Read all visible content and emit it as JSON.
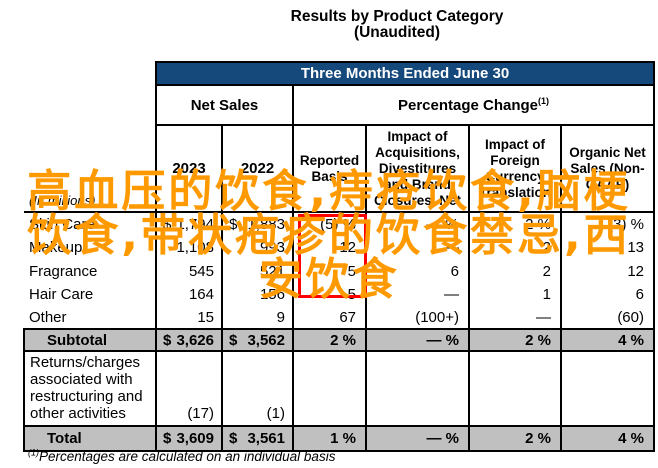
{
  "title": {
    "line1": "Results by Product Category",
    "line2": "(Unaudited)"
  },
  "table": {
    "period_header": "Three Months Ended June 30",
    "net_sales_header": "Net Sales",
    "percentage_change_header": "Percentage Change",
    "percentage_change_superscript": "(1)",
    "in_millions_label": "(In millions)",
    "column_headers": {
      "year_2023": "2023",
      "year_2022": "2022",
      "reported": "Reported Basis",
      "acquisitions": "Impact of Acquisitions, Divestitures and Brand Closures, Net",
      "currency": "Impact of Foreign Currency Translation",
      "organic": "Organic Net Sales (Non-GAAP)"
    },
    "rows": [
      {
        "label": "Skin Care",
        "cur2023": "$",
        "ns2023": "1,794",
        "cur2022": "$",
        "ns2022": "1,883",
        "reported": "(5) %",
        "acquisitions": "— %",
        "currency": "2 %",
        "organic": "(3) %"
      },
      {
        "label": "Makeup",
        "ns2023": "1,108",
        "ns2022": "993",
        "reported": "12",
        "acquisitions": "—",
        "currency": "2",
        "organic": "13"
      },
      {
        "label": "Fragrance",
        "ns2023": "545",
        "ns2022": "521",
        "reported": "5",
        "acquisitions": "6",
        "currency": "2",
        "organic": "12"
      },
      {
        "label": "Hair Care",
        "ns2023": "164",
        "ns2022": "156",
        "reported": "5",
        "acquisitions": "—",
        "currency": "1",
        "organic": "6"
      },
      {
        "label": "Other",
        "ns2023": "15",
        "ns2022": "9",
        "reported": "67",
        "acquisitions": "(100+)",
        "currency": "—",
        "organic": "(60)"
      },
      {
        "label": "Subtotal",
        "cur2023": "$",
        "ns2023": "3,626",
        "cur2022": "$",
        "ns2022": "3,562",
        "reported": "2 %",
        "acquisitions": "— %",
        "currency": "2 %",
        "organic": "4 %"
      },
      {
        "label": "Returns/charges associated with restructuring and other activities",
        "ns2023": "(17)",
        "ns2022": "(1)",
        "reported": "",
        "acquisitions": "",
        "currency": "",
        "organic": ""
      },
      {
        "label": "Total",
        "cur2023": "$",
        "ns2023": "3,609",
        "cur2022": "$",
        "ns2022": "3,561",
        "reported": "1 %",
        "acquisitions": "— %",
        "currency": "2 %",
        "organic": "4 %"
      }
    ],
    "footnote_superscript": "(1)",
    "footnote_text": "Percentages are calculated on an individual basis"
  },
  "overlay": {
    "watermark_lines": [
      "高血压的饮食,痔疮饮食,脑梗",
      "饮食,带状疱疹的饮食禁忌,西",
      "安饮食"
    ]
  },
  "colors": {
    "accent_blue": "#16497b",
    "row_gray": "#c0c0c0",
    "watermark_orange": "#ff9900",
    "highlight_red": "#ff0000"
  }
}
